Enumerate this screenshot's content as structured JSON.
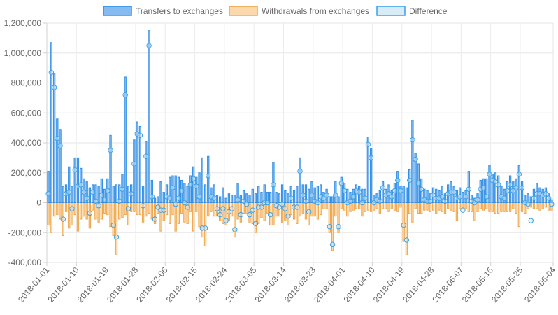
{
  "chart_data": {
    "type": "bar",
    "title": "",
    "xlabel": "",
    "ylabel": "",
    "ylim": [
      -400000,
      1200000
    ],
    "yticks": [
      -400000,
      -200000,
      0,
      200000,
      400000,
      600000,
      800000,
      1000000,
      1200000
    ],
    "ytick_labels": [
      "-400,000",
      "-200,000",
      "0",
      "200,000",
      "400,000",
      "600,000",
      "800,000",
      "1,000,000",
      "1,200,000"
    ],
    "x_start": "2018-01-01",
    "x_end": "2018-06-04",
    "xtick_labels": [
      "2018-01-01",
      "2018-01-10",
      "2018-01-19",
      "2018-01-28",
      "2018-02-06",
      "2018-02-15",
      "2018-02-24",
      "2018-03-05",
      "2018-03-14",
      "2018-03-23",
      "2018-04-01",
      "2018-04-10",
      "2018-04-19",
      "2018-04-28",
      "2018-05-07",
      "2018-05-16",
      "2018-05-25",
      "2018-06-04"
    ],
    "grid": true,
    "legend_position": "top",
    "colors": {
      "transfers": "#2f8fe6",
      "transfers_fill": "#86bbf1",
      "withdrawals": "#f0a64a",
      "withdrawals_fill": "#fcd9ad",
      "difference": "#3aa0e6",
      "difference_fill": "#d7ebf9"
    },
    "series": [
      {
        "name": "Transfers to exchanges",
        "values": [
          210000,
          1070000,
          860000,
          560000,
          490000,
          110000,
          120000,
          240000,
          110000,
          300000,
          300000,
          230000,
          160000,
          140000,
          100000,
          120000,
          120000,
          110000,
          160000,
          90000,
          160000,
          450000,
          110000,
          120000,
          120000,
          190000,
          840000,
          110000,
          120000,
          420000,
          540000,
          510000,
          110000,
          410000,
          1150000,
          150000,
          30000,
          40000,
          140000,
          70000,
          120000,
          170000,
          180000,
          180000,
          170000,
          150000,
          130000,
          110000,
          180000,
          240000,
          170000,
          200000,
          300000,
          120000,
          310000,
          100000,
          120000,
          50000,
          40000,
          100000,
          30000,
          60000,
          50000,
          50000,
          130000,
          50000,
          80000,
          60000,
          50000,
          90000,
          60000,
          110000,
          70000,
          120000,
          70000,
          70000,
          270000,
          70000,
          60000,
          120000,
          80000,
          60000,
          110000,
          80000,
          110000,
          300000,
          120000,
          120000,
          90000,
          140000,
          100000,
          110000,
          120000,
          70000,
          90000,
          40000,
          40000,
          140000,
          40000,
          170000,
          130000,
          90000,
          70000,
          90000,
          120000,
          110000,
          90000,
          90000,
          440000,
          360000,
          50000,
          60000,
          80000,
          140000,
          90000,
          120000,
          80000,
          130000,
          210000,
          110000,
          110000,
          100000,
          220000,
          550000,
          330000,
          260000,
          160000,
          90000,
          80000,
          60000,
          100000,
          90000,
          80000,
          110000,
          60000,
          120000,
          140000,
          110000,
          80000,
          100000,
          70000,
          80000,
          210000,
          50000,
          30000,
          60000,
          150000,
          160000,
          160000,
          250000,
          190000,
          200000,
          180000,
          110000,
          90000,
          140000,
          180000,
          140000,
          160000,
          250000,
          140000,
          50000,
          60000,
          40000,
          90000,
          130000,
          100000,
          90000,
          100000,
          60000,
          20000
        ],
        "marker": "bar"
      },
      {
        "name": "Withdrawals from exchanges",
        "values": [
          -150000,
          -200000,
          -90000,
          -80000,
          -110000,
          -220000,
          -60000,
          -170000,
          -150000,
          -80000,
          -190000,
          -110000,
          -90000,
          -110000,
          -170000,
          -50000,
          -110000,
          -130000,
          -110000,
          -70000,
          -80000,
          -160000,
          -220000,
          -350000,
          -110000,
          -100000,
          -80000,
          -150000,
          -60000,
          -60000,
          -80000,
          -80000,
          -130000,
          -90000,
          -70000,
          -110000,
          -140000,
          -70000,
          -190000,
          -120000,
          -80000,
          -140000,
          -80000,
          -190000,
          -140000,
          -70000,
          -130000,
          -140000,
          -60000,
          -190000,
          -60000,
          -160000,
          -230000,
          -290000,
          -90000,
          -60000,
          -90000,
          -90000,
          -120000,
          -140000,
          -150000,
          -120000,
          -90000,
          -230000,
          -110000,
          -130000,
          -70000,
          -70000,
          -130000,
          -140000,
          -200000,
          -140000,
          -100000,
          -120000,
          -70000,
          -150000,
          -150000,
          -90000,
          -90000,
          -130000,
          -120000,
          -150000,
          -80000,
          -110000,
          -140000,
          -90000,
          -70000,
          -110000,
          -150000,
          -90000,
          -90000,
          -110000,
          -80000,
          -40000,
          -40000,
          -200000,
          -320000,
          -90000,
          -200000,
          -40000,
          -50000,
          -90000,
          -60000,
          -50000,
          -40000,
          -40000,
          -90000,
          -60000,
          -50000,
          -60000,
          -50000,
          -40000,
          -70000,
          -40000,
          -40000,
          -60000,
          -40000,
          -50000,
          -60000,
          -30000,
          -260000,
          -350000,
          -70000,
          -130000,
          -40000,
          -70000,
          -70000,
          -50000,
          -50000,
          -60000,
          -50000,
          -70000,
          -50000,
          -60000,
          -70000,
          -40000,
          -50000,
          -60000,
          -120000,
          -40000,
          -30000,
          -40000,
          -60000,
          -60000,
          -120000,
          -60000,
          -40000,
          -50000,
          -40000,
          -60000,
          -60000,
          -70000,
          -70000,
          -60000,
          -60000,
          -60000,
          -60000,
          -40000,
          -70000,
          -160000,
          -60000,
          -70000,
          -40000,
          -30000,
          -40000,
          -40000,
          -50000,
          -40000,
          -30000,
          -50000,
          -50000
        ],
        "marker": "bar"
      },
      {
        "name": "Difference",
        "values": [
          60000,
          870000,
          770000,
          430000,
          380000,
          -110000,
          60000,
          70000,
          -40000,
          220000,
          110000,
          120000,
          70000,
          30000,
          -70000,
          70000,
          10000,
          -20000,
          50000,
          20000,
          80000,
          350000,
          -150000,
          -230000,
          10000,
          90000,
          720000,
          -40000,
          60000,
          260000,
          460000,
          450000,
          -20000,
          310000,
          1050000,
          40000,
          -110000,
          -30000,
          -50000,
          -50000,
          40000,
          30000,
          100000,
          -10000,
          30000,
          80000,
          0,
          -30000,
          120000,
          160000,
          110000,
          40000,
          -170000,
          -170000,
          180000,
          40000,
          30000,
          -40000,
          -80000,
          -40000,
          -120000,
          -60000,
          -40000,
          -180000,
          20000,
          -80000,
          10000,
          -10000,
          -80000,
          -50000,
          -140000,
          -30000,
          -30000,
          0,
          0,
          -80000,
          120000,
          -20000,
          -30000,
          -10000,
          -40000,
          -90000,
          30000,
          -30000,
          -30000,
          210000,
          50000,
          10000,
          -60000,
          50000,
          10000,
          0,
          40000,
          30000,
          50000,
          -160000,
          -280000,
          50000,
          -160000,
          130000,
          80000,
          0,
          10000,
          40000,
          80000,
          70000,
          0,
          30000,
          390000,
          300000,
          0,
          20000,
          10000,
          100000,
          50000,
          60000,
          40000,
          80000,
          150000,
          80000,
          -150000,
          -250000,
          150000,
          420000,
          290000,
          130000,
          90000,
          20000,
          10000,
          10000,
          50000,
          30000,
          30000,
          40000,
          10000,
          60000,
          70000,
          70000,
          30000,
          40000,
          -50000,
          40000,
          90000,
          10000,
          0,
          20000,
          90000,
          100000,
          40000,
          190000,
          150000,
          140000,
          120000,
          40000,
          30000,
          80000,
          120000,
          80000,
          100000,
          190000,
          100000,
          0,
          -10000,
          -120000,
          30000,
          60000,
          60000,
          50000,
          60000,
          30000,
          -10000
        ],
        "marker": "point"
      }
    ]
  }
}
